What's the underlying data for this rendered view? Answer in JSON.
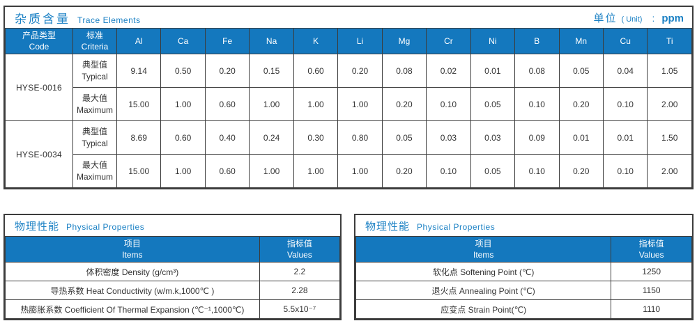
{
  "colors": {
    "header_blue": "#1478be",
    "title_blue": "#1a80c4",
    "border_dark": "#3c3c3c",
    "text_dark": "#333333"
  },
  "trace": {
    "title_zh": "杂质含量",
    "title_en": "Trace Elements",
    "unit_zh": "单位",
    "unit_paren": "( Unit)",
    "unit_colon": ":",
    "unit_value": "ppm",
    "col_code": {
      "zh": "产品类型",
      "en": "Code"
    },
    "col_criteria": {
      "zh": "标准",
      "en": "Criteria"
    },
    "elements": [
      "Al",
      "Ca",
      "Fe",
      "Na",
      "K",
      "Li",
      "Mg",
      "Cr",
      "Ni",
      "B",
      "Mn",
      "Cu",
      "Ti"
    ],
    "products": [
      {
        "code": "HYSE-0016",
        "rows": [
          {
            "zh": "典型值",
            "en": "Typical",
            "values": [
              "9.14",
              "0.50",
              "0.20",
              "0.15",
              "0.60",
              "0.20",
              "0.08",
              "0.02",
              "0.01",
              "0.08",
              "0.05",
              "0.04",
              "1.05"
            ]
          },
          {
            "zh": "最大值",
            "en": "Maximum",
            "values": [
              "15.00",
              "1.00",
              "0.60",
              "1.00",
              "1.00",
              "1.00",
              "0.20",
              "0.10",
              "0.05",
              "0.10",
              "0.20",
              "0.10",
              "2.00"
            ]
          }
        ]
      },
      {
        "code": "HYSE-0034",
        "rows": [
          {
            "zh": "典型值",
            "en": "Typical",
            "values": [
              "8.69",
              "0.60",
              "0.40",
              "0.24",
              "0.30",
              "0.80",
              "0.05",
              "0.03",
              "0.03",
              "0.09",
              "0.01",
              "0.01",
              "1.50"
            ]
          },
          {
            "zh": "最大值",
            "en": "Maximum",
            "values": [
              "15.00",
              "1.00",
              "0.60",
              "1.00",
              "1.00",
              "1.00",
              "0.20",
              "0.10",
              "0.05",
              "0.10",
              "0.20",
              "0.10",
              "2.00"
            ]
          }
        ]
      }
    ]
  },
  "physical_left": {
    "title_zh": "物理性能",
    "title_en": "Physical Properties",
    "col_items": {
      "zh": "项目",
      "en": "Items"
    },
    "col_values": {
      "zh": "指标值",
      "en": "Values"
    },
    "rows": [
      {
        "item": "体积密度 Density (g/cm³)",
        "value": "2.2"
      },
      {
        "item": "导热系数 Heat Conductivity (w/m.k,1000℃ )",
        "value": "2.28"
      },
      {
        "item": "热膨胀系数 Coefficient Of Thermal Expansion (℃⁻¹,1000℃)",
        "value": "5.5x10⁻⁷"
      }
    ]
  },
  "physical_right": {
    "title_zh": "物理性能",
    "title_en": "Physical Properties",
    "col_items": {
      "zh": "项目",
      "en": "Items"
    },
    "col_values": {
      "zh": "指标值",
      "en": "Values"
    },
    "rows": [
      {
        "item": "软化点 Softening Point (℃)",
        "value": "1250"
      },
      {
        "item": "退火点 Annealing Point (℃)",
        "value": "1150"
      },
      {
        "item": "应变点 Strain Point(℃)",
        "value": "1110"
      }
    ]
  }
}
